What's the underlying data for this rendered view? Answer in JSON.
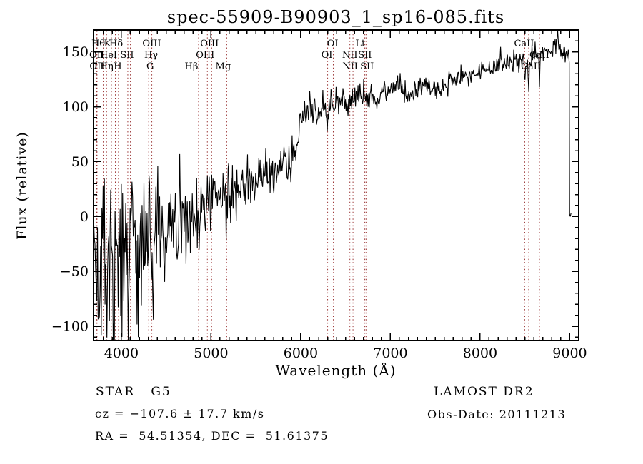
{
  "title": "spec-55909-B90903_1_sp16-085.fits",
  "colors": {
    "background": "#ffffff",
    "spectrum": "#000000",
    "axis": "#000000",
    "line_marker": "#9a3434"
  },
  "annotations": {
    "class_label": "STAR   G5",
    "survey": "LAMOST DR2",
    "cz": "cz = −107.6 ± 17.7 km/s",
    "obs_date": "Obs-Date: 20111213",
    "ra_dec": "RA =  54.51354, DEC =  51.61375"
  },
  "chart_data": {
    "type": "line",
    "title": "spec-55909-B90903_1_sp16-085.fits",
    "xlabel": "Wavelength (Å)",
    "ylabel": "Flux (relative)",
    "xlim": [
      3690,
      9100
    ],
    "ylim": [
      -113,
      170
    ],
    "x_ticks": [
      4000,
      5000,
      6000,
      7000,
      8000,
      9000
    ],
    "y_ticks": [
      -100,
      -50,
      0,
      50,
      100,
      150
    ],
    "x_minor_step": 100,
    "y_minor_step": 10,
    "grid": false,
    "legend": "none",
    "series_description": "Single noisy stellar spectrum (flux vs wavelength); very noisy blue end rising to a smooth red continuum, CaII triplet absorption dips near 8500-8662 A, sharp drop to ~0 flux at the red edge (~9000 A).",
    "spectrum_start": 3692,
    "spectrum_break": 8992,
    "sample_step": 7,
    "noise_seed": 42,
    "continuum": [
      [
        3692,
        -40
      ],
      [
        3740,
        -28
      ],
      [
        3790,
        -36
      ],
      [
        3840,
        -30
      ],
      [
        3880,
        -42
      ],
      [
        3930,
        -24
      ],
      [
        3980,
        -36
      ],
      [
        4040,
        -28
      ],
      [
        4100,
        -24
      ],
      [
        4160,
        -30
      ],
      [
        4220,
        -22
      ],
      [
        4280,
        -26
      ],
      [
        4340,
        -16
      ],
      [
        4400,
        -22
      ],
      [
        4460,
        -14
      ],
      [
        4520,
        -12
      ],
      [
        4580,
        -8
      ],
      [
        4640,
        -10
      ],
      [
        4700,
        -4
      ],
      [
        4760,
        0
      ],
      [
        4820,
        2
      ],
      [
        4880,
        6
      ],
      [
        4940,
        10
      ],
      [
        5000,
        13
      ],
      [
        5060,
        16
      ],
      [
        5120,
        19
      ],
      [
        5180,
        20
      ],
      [
        5240,
        25
      ],
      [
        5300,
        28
      ],
      [
        5360,
        30
      ],
      [
        5420,
        32
      ],
      [
        5480,
        34
      ],
      [
        5540,
        36
      ],
      [
        5600,
        38
      ],
      [
        5660,
        40
      ],
      [
        5720,
        43
      ],
      [
        5780,
        47
      ],
      [
        5840,
        50
      ],
      [
        5900,
        56
      ],
      [
        5950,
        66
      ],
      [
        6000,
        84
      ],
      [
        6040,
        94
      ],
      [
        6100,
        96
      ],
      [
        6160,
        98
      ],
      [
        6220,
        97
      ],
      [
        6280,
        100
      ],
      [
        6340,
        102
      ],
      [
        6400,
        103
      ],
      [
        6460,
        105
      ],
      [
        6520,
        107
      ],
      [
        6580,
        108
      ],
      [
        6640,
        109
      ],
      [
        6700,
        111
      ],
      [
        6760,
        110
      ],
      [
        6820,
        107
      ],
      [
        6880,
        112
      ],
      [
        6940,
        114
      ],
      [
        7000,
        116
      ],
      [
        7060,
        118
      ],
      [
        7120,
        117
      ],
      [
        7180,
        114
      ],
      [
        7240,
        111
      ],
      [
        7300,
        116
      ],
      [
        7360,
        119
      ],
      [
        7420,
        120
      ],
      [
        7480,
        116
      ],
      [
        7540,
        112
      ],
      [
        7600,
        118
      ],
      [
        7660,
        122
      ],
      [
        7720,
        124
      ],
      [
        7780,
        126
      ],
      [
        7840,
        128
      ],
      [
        7900,
        130
      ],
      [
        7960,
        131
      ],
      [
        8020,
        132
      ],
      [
        8080,
        134
      ],
      [
        8140,
        136
      ],
      [
        8200,
        137
      ],
      [
        8260,
        139
      ],
      [
        8320,
        140
      ],
      [
        8380,
        141
      ],
      [
        8440,
        142
      ],
      [
        8500,
        143
      ],
      [
        8560,
        144
      ],
      [
        8620,
        146
      ],
      [
        8680,
        147
      ],
      [
        8740,
        149
      ],
      [
        8800,
        152
      ],
      [
        8860,
        153
      ],
      [
        8920,
        151
      ],
      [
        8980,
        150
      ],
      [
        8992,
        149
      ]
    ],
    "noise_sigma": [
      [
        3692,
        36
      ],
      [
        3800,
        40
      ],
      [
        3900,
        42
      ],
      [
        4000,
        36
      ],
      [
        4100,
        33
      ],
      [
        4200,
        30
      ],
      [
        4300,
        27
      ],
      [
        4400,
        25
      ],
      [
        4500,
        22
      ],
      [
        4700,
        18
      ],
      [
        4900,
        15
      ],
      [
        5100,
        13
      ],
      [
        5300,
        12
      ],
      [
        5500,
        10
      ],
      [
        5700,
        10
      ],
      [
        5900,
        9
      ],
      [
        6050,
        7
      ],
      [
        6300,
        6.5
      ],
      [
        6600,
        6
      ],
      [
        7000,
        5.5
      ],
      [
        7400,
        5
      ],
      [
        7800,
        4.5
      ],
      [
        8200,
        4.5
      ],
      [
        8600,
        5
      ],
      [
        8900,
        5.5
      ],
      [
        8992,
        5
      ]
    ],
    "features": [
      [
        3758,
        -55,
        8
      ],
      [
        3836,
        -48,
        8
      ],
      [
        3884,
        90,
        6
      ],
      [
        3912,
        -58,
        8
      ],
      [
        3968,
        -62,
        8
      ],
      [
        4046,
        52,
        6
      ],
      [
        4078,
        -50,
        8
      ],
      [
        4190,
        -46,
        8
      ],
      [
        4310,
        48,
        6
      ],
      [
        4352,
        -55,
        8
      ],
      [
        4480,
        -55,
        8
      ],
      [
        4650,
        32,
        6
      ],
      [
        4866,
        -28,
        8
      ],
      [
        5172,
        -24,
        8
      ],
      [
        5890,
        -16,
        8
      ],
      [
        6302,
        -14,
        6
      ],
      [
        6563,
        -8,
        6
      ],
      [
        8230,
        12,
        6
      ],
      [
        8498,
        -20,
        5
      ],
      [
        8542,
        -36,
        5
      ],
      [
        8662,
        -25,
        5
      ],
      [
        8830,
        14,
        5
      ],
      [
        8866,
        16,
        5
      ]
    ],
    "tail": [
      [
        8994,
        140
      ],
      [
        8996,
        80
      ],
      [
        8998,
        2
      ],
      [
        9006,
        0
      ],
      [
        9014,
        3
      ]
    ],
    "spectral_lines": [
      {
        "label": "Hθ",
        "wavelength": 3798,
        "row": 1,
        "dx": -7
      },
      {
        "label": "K",
        "wavelength": 3933,
        "row": 1,
        "dx": -11
      },
      {
        "label": "Hδ",
        "wavelength": 4101,
        "row": 1,
        "dx": -20
      },
      {
        "label": "OIII",
        "wavelength": 4363,
        "row": 1,
        "dx": -3
      },
      {
        "label": "OIII",
        "wavelength": 5007,
        "row": 1,
        "dx": -3
      },
      {
        "label": "OI",
        "wavelength": 6300,
        "row": 1,
        "dx": 7
      },
      {
        "label": "Li",
        "wavelength": 6708,
        "row": 1,
        "dx": -6
      },
      {
        "label": "CaII",
        "wavelength": 8498,
        "row": 1,
        "dx": -1
      },
      {
        "label": "OII",
        "wavelength": 3726,
        "row": 2,
        "dx": 0
      },
      {
        "label": "HeI",
        "wavelength": 3889,
        "row": 2,
        "dx": -4
      },
      {
        "label": "SII",
        "wavelength": 4072,
        "row": 2,
        "dx": -1
      },
      {
        "label": "Hγ",
        "wavelength": 4340,
        "row": 2,
        "dx": -1
      },
      {
        "label": "OIII",
        "wavelength": 4959,
        "row": 2,
        "dx": -3
      },
      {
        "label": "OI",
        "wavelength": 6363,
        "row": 2,
        "dx": -9
      },
      {
        "label": "NII",
        "wavelength": 6548,
        "row": 2,
        "dx": 0
      },
      {
        "label": "SII",
        "wavelength": 6716,
        "row": 2,
        "dx": 0
      },
      {
        "label": "CaII",
        "wavelength": 8542,
        "row": 2,
        "dx": 15
      },
      {
        "label": "OII",
        "wavelength": 3729,
        "row": 3,
        "dx": 0
      },
      {
        "label": "Hη",
        "wavelength": 3835,
        "row": 3,
        "dx": 0
      },
      {
        "label": "H",
        "wavelength": 3968,
        "row": 3,
        "dx": -1
      },
      {
        "label": "G",
        "wavelength": 4305,
        "row": 3,
        "dx": 2
      },
      {
        "label": "Hβ",
        "wavelength": 4861,
        "row": 3,
        "dx": -10
      },
      {
        "label": "Mg",
        "wavelength": 5175,
        "row": 3,
        "dx": -5
      },
      {
        "label": "NII",
        "wavelength": 6583,
        "row": 3,
        "dx": -4
      },
      {
        "label": "SII",
        "wavelength": 6731,
        "row": 3,
        "dx": 1
      },
      {
        "label": "CaII",
        "wavelength": 8662,
        "row": 3,
        "dx": -12
      }
    ]
  }
}
